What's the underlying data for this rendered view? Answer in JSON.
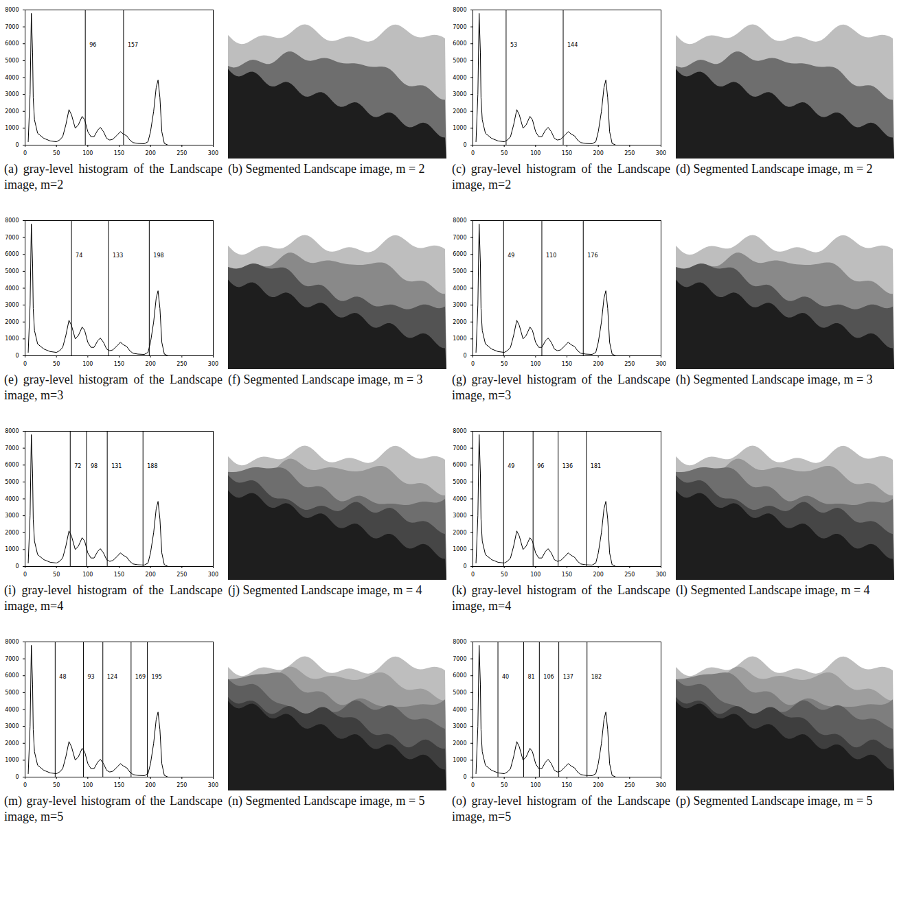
{
  "chart_data": [
    {
      "type": "line",
      "title": "(a) gray-level histogram of the Landscape image, m=2",
      "color": "#000000",
      "x": [
        5,
        8,
        10,
        12,
        13,
        15,
        20,
        30,
        40,
        50,
        55,
        60,
        65,
        70,
        74,
        80,
        85,
        91,
        95,
        100,
        105,
        110,
        116,
        120,
        125,
        130,
        135,
        140,
        147,
        152,
        157,
        162,
        167,
        172,
        180,
        190,
        196,
        200,
        205,
        209,
        212,
        215,
        218,
        222,
        228
      ],
      "values": [
        200,
        3000,
        7800,
        5500,
        2800,
        1500,
        700,
        400,
        250,
        200,
        300,
        500,
        1200,
        2100,
        1800,
        1000,
        1200,
        1700,
        1500,
        800,
        500,
        500,
        900,
        1050,
        800,
        400,
        300,
        350,
        600,
        800,
        650,
        550,
        300,
        150,
        100,
        80,
        200,
        800,
        2000,
        3400,
        3850,
        2800,
        800,
        100,
        0
      ],
      "thresholds": [
        96,
        157
      ],
      "xlim": [
        0,
        300
      ],
      "xticks": [
        0,
        50,
        100,
        150,
        200,
        250,
        300
      ],
      "ylim": [
        0,
        8000
      ],
      "yticks": [
        0,
        1000,
        2000,
        3000,
        4000,
        5000,
        6000,
        7000,
        8000
      ]
    },
    {
      "type": "image",
      "title": "(b) Segmented Landscape image, m = 2"
    },
    {
      "type": "line",
      "title": "(c) gray-level histogram of the Landscape image, m=2",
      "color": "#000000",
      "x": [
        5,
        8,
        10,
        12,
        13,
        15,
        20,
        30,
        40,
        50,
        55,
        60,
        65,
        70,
        74,
        80,
        85,
        91,
        95,
        100,
        105,
        110,
        116,
        120,
        125,
        130,
        135,
        140,
        147,
        152,
        157,
        162,
        167,
        172,
        180,
        190,
        196,
        200,
        205,
        209,
        212,
        215,
        218,
        222,
        228
      ],
      "values": [
        200,
        3000,
        7800,
        5500,
        2800,
        1500,
        700,
        400,
        250,
        200,
        300,
        500,
        1200,
        2100,
        1800,
        1000,
        1200,
        1700,
        1500,
        800,
        500,
        500,
        900,
        1050,
        800,
        400,
        300,
        350,
        600,
        800,
        650,
        550,
        300,
        150,
        100,
        80,
        200,
        800,
        2000,
        3400,
        3850,
        2800,
        800,
        100,
        0
      ],
      "thresholds": [
        53,
        144
      ],
      "xlim": [
        0,
        300
      ],
      "xticks": [
        0,
        50,
        100,
        150,
        200,
        250,
        300
      ],
      "ylim": [
        0,
        8000
      ],
      "yticks": [
        0,
        1000,
        2000,
        3000,
        4000,
        5000,
        6000,
        7000,
        8000
      ]
    },
    {
      "type": "image",
      "title": "(d) Segmented Landscape image, m = 2"
    },
    {
      "type": "line",
      "title": "(e) gray-level histogram of the Landscape image, m=3",
      "color": "#000000",
      "x": [
        5,
        8,
        10,
        12,
        13,
        15,
        20,
        30,
        40,
        50,
        55,
        60,
        65,
        70,
        74,
        80,
        85,
        91,
        95,
        100,
        105,
        110,
        116,
        120,
        125,
        130,
        135,
        140,
        147,
        152,
        157,
        162,
        167,
        172,
        180,
        190,
        196,
        200,
        205,
        209,
        212,
        215,
        218,
        222,
        228
      ],
      "values": [
        200,
        3000,
        7800,
        5500,
        2800,
        1500,
        700,
        400,
        250,
        200,
        300,
        500,
        1200,
        2100,
        1800,
        1000,
        1200,
        1700,
        1500,
        800,
        500,
        500,
        900,
        1050,
        800,
        400,
        300,
        350,
        600,
        800,
        650,
        550,
        300,
        150,
        100,
        80,
        200,
        800,
        2000,
        3400,
        3850,
        2800,
        800,
        100,
        0
      ],
      "thresholds": [
        74,
        133,
        198
      ],
      "xlim": [
        0,
        300
      ],
      "xticks": [
        0,
        50,
        100,
        150,
        200,
        250,
        300
      ],
      "ylim": [
        0,
        8000
      ],
      "yticks": [
        0,
        1000,
        2000,
        3000,
        4000,
        5000,
        6000,
        7000,
        8000
      ]
    },
    {
      "type": "image",
      "title": "(f) Segmented Landscape image, m = 3"
    },
    {
      "type": "line",
      "title": "(g) gray-level histogram of the Landscape image, m=3",
      "color": "#000000",
      "x": [
        5,
        8,
        10,
        12,
        13,
        15,
        20,
        30,
        40,
        50,
        55,
        60,
        65,
        70,
        74,
        80,
        85,
        91,
        95,
        100,
        105,
        110,
        116,
        120,
        125,
        130,
        135,
        140,
        147,
        152,
        157,
        162,
        167,
        172,
        180,
        190,
        196,
        200,
        205,
        209,
        212,
        215,
        218,
        222,
        228
      ],
      "values": [
        200,
        3000,
        7800,
        5500,
        2800,
        1500,
        700,
        400,
        250,
        200,
        300,
        500,
        1200,
        2100,
        1800,
        1000,
        1200,
        1700,
        1500,
        800,
        500,
        500,
        900,
        1050,
        800,
        400,
        300,
        350,
        600,
        800,
        650,
        550,
        300,
        150,
        100,
        80,
        200,
        800,
        2000,
        3400,
        3850,
        2800,
        800,
        100,
        0
      ],
      "thresholds": [
        49,
        110,
        176
      ],
      "xlim": [
        0,
        300
      ],
      "xticks": [
        0,
        50,
        100,
        150,
        200,
        250,
        300
      ],
      "ylim": [
        0,
        8000
      ],
      "yticks": [
        0,
        1000,
        2000,
        3000,
        4000,
        5000,
        6000,
        7000,
        8000
      ]
    },
    {
      "type": "image",
      "title": "(h) Segmented Landscape image, m = 3"
    },
    {
      "type": "line",
      "title": "(i) gray-level histogram of the Landscape image, m=4",
      "color": "#000000",
      "x": [
        5,
        8,
        10,
        12,
        13,
        15,
        20,
        30,
        40,
        50,
        55,
        60,
        65,
        70,
        74,
        80,
        85,
        91,
        95,
        100,
        105,
        110,
        116,
        120,
        125,
        130,
        135,
        140,
        147,
        152,
        157,
        162,
        167,
        172,
        180,
        190,
        196,
        200,
        205,
        209,
        212,
        215,
        218,
        222,
        228
      ],
      "values": [
        200,
        3000,
        7800,
        5500,
        2800,
        1500,
        700,
        400,
        250,
        200,
        300,
        500,
        1200,
        2100,
        1800,
        1000,
        1200,
        1700,
        1500,
        800,
        500,
        500,
        900,
        1050,
        800,
        400,
        300,
        350,
        600,
        800,
        650,
        550,
        300,
        150,
        100,
        80,
        200,
        800,
        2000,
        3400,
        3850,
        2800,
        800,
        100,
        0
      ],
      "thresholds": [
        72,
        98,
        131,
        188
      ],
      "xlim": [
        0,
        300
      ],
      "xticks": [
        0,
        50,
        100,
        150,
        200,
        250,
        300
      ],
      "ylim": [
        0,
        8000
      ],
      "yticks": [
        0,
        1000,
        2000,
        3000,
        4000,
        5000,
        6000,
        7000,
        8000
      ]
    },
    {
      "type": "image",
      "title": "(j) Segmented Landscape image, m = 4"
    },
    {
      "type": "line",
      "title": "(k) gray-level histogram of the Landscape image, m=4",
      "color": "#000000",
      "x": [
        5,
        8,
        10,
        12,
        13,
        15,
        20,
        30,
        40,
        50,
        55,
        60,
        65,
        70,
        74,
        80,
        85,
        91,
        95,
        100,
        105,
        110,
        116,
        120,
        125,
        130,
        135,
        140,
        147,
        152,
        157,
        162,
        167,
        172,
        180,
        190,
        196,
        200,
        205,
        209,
        212,
        215,
        218,
        222,
        228
      ],
      "values": [
        200,
        3000,
        7800,
        5500,
        2800,
        1500,
        700,
        400,
        250,
        200,
        300,
        500,
        1200,
        2100,
        1800,
        1000,
        1200,
        1700,
        1500,
        800,
        500,
        500,
        900,
        1050,
        800,
        400,
        300,
        350,
        600,
        800,
        650,
        550,
        300,
        150,
        100,
        80,
        200,
        800,
        2000,
        3400,
        3850,
        2800,
        800,
        100,
        0
      ],
      "thresholds": [
        49,
        96,
        136,
        181
      ],
      "xlim": [
        0,
        300
      ],
      "xticks": [
        0,
        50,
        100,
        150,
        200,
        250,
        300
      ],
      "ylim": [
        0,
        8000
      ],
      "yticks": [
        0,
        1000,
        2000,
        3000,
        4000,
        5000,
        6000,
        7000,
        8000
      ]
    },
    {
      "type": "image",
      "title": "(l) Segmented Landscape image, m = 4"
    },
    {
      "type": "line",
      "title": "(m) gray-level histogram of the Landscape image, m=5",
      "color": "#000000",
      "x": [
        5,
        8,
        10,
        12,
        13,
        15,
        20,
        30,
        40,
        50,
        55,
        60,
        65,
        70,
        74,
        80,
        85,
        91,
        95,
        100,
        105,
        110,
        116,
        120,
        125,
        130,
        135,
        140,
        147,
        152,
        157,
        162,
        167,
        172,
        180,
        190,
        196,
        200,
        205,
        209,
        212,
        215,
        218,
        222,
        228
      ],
      "values": [
        200,
        3000,
        7800,
        5500,
        2800,
        1500,
        700,
        400,
        250,
        200,
        300,
        500,
        1200,
        2100,
        1800,
        1000,
        1200,
        1700,
        1500,
        800,
        500,
        500,
        900,
        1050,
        800,
        400,
        300,
        350,
        600,
        800,
        650,
        550,
        300,
        150,
        100,
        80,
        200,
        800,
        2000,
        3400,
        3850,
        2800,
        800,
        100,
        0
      ],
      "thresholds": [
        48,
        93,
        124,
        169,
        195
      ],
      "xlim": [
        0,
        300
      ],
      "xticks": [
        0,
        50,
        100,
        150,
        200,
        250,
        300
      ],
      "ylim": [
        0,
        8000
      ],
      "yticks": [
        0,
        1000,
        2000,
        3000,
        4000,
        5000,
        6000,
        7000,
        8000
      ]
    },
    {
      "type": "image",
      "title": "(n) Segmented Landscape image, m = 5"
    },
    {
      "type": "line",
      "title": "(o) gray-level histogram of the Landscape image, m=5",
      "color": "#000000",
      "x": [
        5,
        8,
        10,
        12,
        13,
        15,
        20,
        30,
        40,
        50,
        55,
        60,
        65,
        70,
        74,
        80,
        85,
        91,
        95,
        100,
        105,
        110,
        116,
        120,
        125,
        130,
        135,
        140,
        147,
        152,
        157,
        162,
        167,
        172,
        180,
        190,
        196,
        200,
        205,
        209,
        212,
        215,
        218,
        222,
        228
      ],
      "values": [
        200,
        3000,
        7800,
        5500,
        2800,
        1500,
        700,
        400,
        250,
        200,
        300,
        500,
        1200,
        2100,
        1800,
        1000,
        1200,
        1700,
        1500,
        800,
        500,
        500,
        900,
        1050,
        800,
        400,
        300,
        350,
        600,
        800,
        650,
        550,
        300,
        150,
        100,
        80,
        200,
        800,
        2000,
        3400,
        3850,
        2800,
        800,
        100,
        0
      ],
      "thresholds": [
        40,
        81,
        106,
        137,
        182
      ],
      "xlim": [
        0,
        300
      ],
      "xticks": [
        0,
        50,
        100,
        150,
        200,
        250,
        300
      ],
      "ylim": [
        0,
        8000
      ],
      "yticks": [
        0,
        1000,
        2000,
        3000,
        4000,
        5000,
        6000,
        7000,
        8000
      ]
    },
    {
      "type": "image",
      "title": "(p) Segmented Landscape image, m = 5"
    }
  ]
}
